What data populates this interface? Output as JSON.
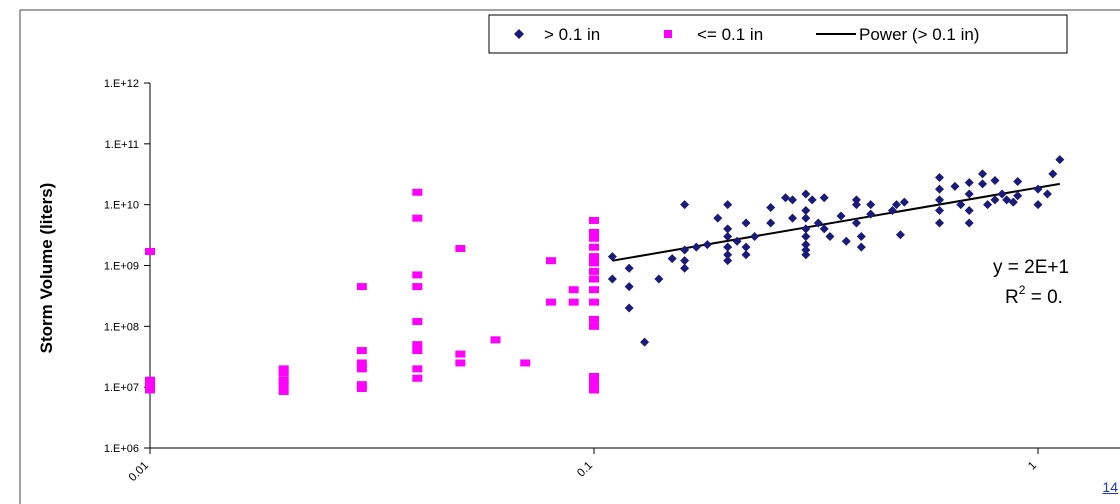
{
  "chart_data": {
    "type": "scatter",
    "title": "",
    "xlabel": "",
    "ylabel": "Storm Volume (liters)",
    "x_scale": "log",
    "y_scale": "log",
    "xlim": [
      0.01,
      1.12
    ],
    "ylim": [
      1000000.0,
      1000000000000.0
    ],
    "x_ticks": [
      {
        "value": 0.01,
        "label": "0.01"
      },
      {
        "value": 0.1,
        "label": "0.1"
      },
      {
        "value": 1,
        "label": "1"
      }
    ],
    "y_ticks": [
      {
        "value": 1000000.0,
        "label": "1.E+06"
      },
      {
        "value": 10000000.0,
        "label": "1.E+07"
      },
      {
        "value": 100000000.0,
        "label": "1.E+08"
      },
      {
        "value": 1000000000.0,
        "label": "1.E+09"
      },
      {
        "value": 10000000000.0,
        "label": "1.E+10"
      },
      {
        "value": 100000000000.0,
        "label": "1.E+11"
      },
      {
        "value": 1000000000000.0,
        "label": "1.E+12"
      }
    ],
    "grid": false,
    "legend_position": "top-right",
    "legend": [
      {
        "label": "> 0.1 in",
        "marker": "diamond",
        "color": "#1a1a7a"
      },
      {
        "label": "<= 0.1 in",
        "marker": "square",
        "color": "#ff00ff"
      },
      {
        "label": "Power (> 0.1 in)",
        "marker": "line",
        "color": "#000000"
      }
    ],
    "series": [
      {
        "name": "> 0.1 in",
        "marker": "diamond",
        "color": "#1a1a7a",
        "points": [
          [
            0.11,
            1400000000.0
          ],
          [
            0.11,
            600000000.0
          ],
          [
            0.12,
            900000000.0
          ],
          [
            0.12,
            450000000.0
          ],
          [
            0.12,
            200000000.0
          ],
          [
            0.13,
            55000000.0
          ],
          [
            0.14,
            600000000.0
          ],
          [
            0.15,
            1300000000.0
          ],
          [
            0.16,
            1800000000.0
          ],
          [
            0.16,
            1200000000.0
          ],
          [
            0.16,
            900000000.0
          ],
          [
            0.16,
            10000000000.0
          ],
          [
            0.17,
            2000000000.0
          ],
          [
            0.18,
            2200000000.0
          ],
          [
            0.19,
            6000000000.0
          ],
          [
            0.2,
            3000000000.0
          ],
          [
            0.2,
            2000000000.0
          ],
          [
            0.2,
            1500000000.0
          ],
          [
            0.2,
            1200000000.0
          ],
          [
            0.2,
            10000000000.0
          ],
          [
            0.2,
            4000000000.0
          ],
          [
            0.21,
            2500000000.0
          ],
          [
            0.22,
            5000000000.0
          ],
          [
            0.22,
            2000000000.0
          ],
          [
            0.22,
            1500000000.0
          ],
          [
            0.23,
            3000000000.0
          ],
          [
            0.25,
            9000000000.0
          ],
          [
            0.25,
            5000000000.0
          ],
          [
            0.27,
            13000000000.0
          ],
          [
            0.28,
            6000000000.0
          ],
          [
            0.28,
            12000000000.0
          ],
          [
            0.3,
            15000000000.0
          ],
          [
            0.3,
            8000000000.0
          ],
          [
            0.3,
            6000000000.0
          ],
          [
            0.3,
            4000000000.0
          ],
          [
            0.3,
            3000000000.0
          ],
          [
            0.3,
            2200000000.0
          ],
          [
            0.3,
            1800000000.0
          ],
          [
            0.3,
            1500000000.0
          ],
          [
            0.31,
            12000000000.0
          ],
          [
            0.32,
            5000000000.0
          ],
          [
            0.33,
            13000000000.0
          ],
          [
            0.33,
            4000000000.0
          ],
          [
            0.34,
            3000000000.0
          ],
          [
            0.36,
            6500000000.0
          ],
          [
            0.37,
            2500000000.0
          ],
          [
            0.39,
            12000000000.0
          ],
          [
            0.39,
            10000000000.0
          ],
          [
            0.39,
            5000000000.0
          ],
          [
            0.4,
            3000000000.0
          ],
          [
            0.4,
            2000000000.0
          ],
          [
            0.42,
            10000000000.0
          ],
          [
            0.42,
            7000000000.0
          ],
          [
            0.47,
            8000000000.0
          ],
          [
            0.48,
            10000000000.0
          ],
          [
            0.49,
            3200000000.0
          ],
          [
            0.5,
            11000000000.0
          ],
          [
            0.6,
            28000000000.0
          ],
          [
            0.6,
            18000000000.0
          ],
          [
            0.6,
            12000000000.0
          ],
          [
            0.6,
            8000000000.0
          ],
          [
            0.6,
            5000000000.0
          ],
          [
            0.65,
            20000000000.0
          ],
          [
            0.67,
            10000000000.0
          ],
          [
            0.7,
            23000000000.0
          ],
          [
            0.7,
            15000000000.0
          ],
          [
            0.7,
            8000000000.0
          ],
          [
            0.7,
            5000000000.0
          ],
          [
            0.75,
            32000000000.0
          ],
          [
            0.75,
            22000000000.0
          ],
          [
            0.77,
            10000000000.0
          ],
          [
            0.8,
            25000000000.0
          ],
          [
            0.8,
            12000000000.0
          ],
          [
            0.83,
            15000000000.0
          ],
          [
            0.85,
            12000000000.0
          ],
          [
            0.88,
            11000000000.0
          ],
          [
            0.9,
            14000000000.0
          ],
          [
            0.9,
            24000000000.0
          ],
          [
            1.0,
            10000000000.0
          ],
          [
            1.0,
            18000000000.0
          ],
          [
            1.05,
            15000000000.0
          ],
          [
            1.08,
            32000000000.0
          ],
          [
            1.12,
            55000000000.0
          ]
        ]
      },
      {
        "name": "<= 0.1 in",
        "marker": "square",
        "color": "#ff00ff",
        "points": [
          [
            0.01,
            1700000000.0
          ],
          [
            0.01,
            13000000.0
          ],
          [
            0.01,
            11000000.0
          ],
          [
            0.01,
            9000000.0
          ],
          [
            0.02,
            20000000.0
          ],
          [
            0.02,
            17000000.0
          ],
          [
            0.02,
            13000000.0
          ],
          [
            0.02,
            11000000.0
          ],
          [
            0.02,
            8500000.0
          ],
          [
            0.03,
            450000000.0
          ],
          [
            0.03,
            40000000.0
          ],
          [
            0.03,
            25000000.0
          ],
          [
            0.03,
            20000000.0
          ],
          [
            0.03,
            11000000.0
          ],
          [
            0.03,
            9500000.0
          ],
          [
            0.04,
            16000000000.0
          ],
          [
            0.04,
            6000000000.0
          ],
          [
            0.04,
            700000000.0
          ],
          [
            0.04,
            450000000.0
          ],
          [
            0.04,
            120000000.0
          ],
          [
            0.04,
            50000000.0
          ],
          [
            0.04,
            40000000.0
          ],
          [
            0.04,
            20000000.0
          ],
          [
            0.04,
            14000000.0
          ],
          [
            0.05,
            1900000000.0
          ],
          [
            0.05,
            35000000.0
          ],
          [
            0.05,
            25000000.0
          ],
          [
            0.06,
            60000000.0
          ],
          [
            0.07,
            25000000.0
          ],
          [
            0.08,
            1200000000.0
          ],
          [
            0.08,
            250000000.0
          ],
          [
            0.09,
            400000000.0
          ],
          [
            0.09,
            250000000.0
          ],
          [
            0.1,
            5500000000.0
          ],
          [
            0.1,
            3500000000.0
          ],
          [
            0.1,
            2800000000.0
          ],
          [
            0.1,
            2000000000.0
          ],
          [
            0.1,
            1400000000.0
          ],
          [
            0.1,
            1100000000.0
          ],
          [
            0.1,
            800000000.0
          ],
          [
            0.1,
            600000000.0
          ],
          [
            0.1,
            400000000.0
          ],
          [
            0.1,
            250000000.0
          ],
          [
            0.1,
            130000000.0
          ],
          [
            0.1,
            100000000.0
          ],
          [
            0.1,
            15000000.0
          ],
          [
            0.1,
            12000000.0
          ],
          [
            0.1,
            10000000.0
          ],
          [
            0.1,
            9000000.0
          ]
        ]
      }
    ],
    "trendline": {
      "name": "Power (> 0.1 in)",
      "type": "power",
      "color": "#000000",
      "x_range": [
        0.11,
        1.12
      ],
      "y_range": [
        1200000000.0,
        22000000000.0
      ]
    },
    "annotations": {
      "equation": "y = 2E+1",
      "r2_prefix": "R",
      "r2_sup": "2",
      "r2_suffix": " = 0."
    }
  },
  "footer": {
    "page_number": "14"
  }
}
